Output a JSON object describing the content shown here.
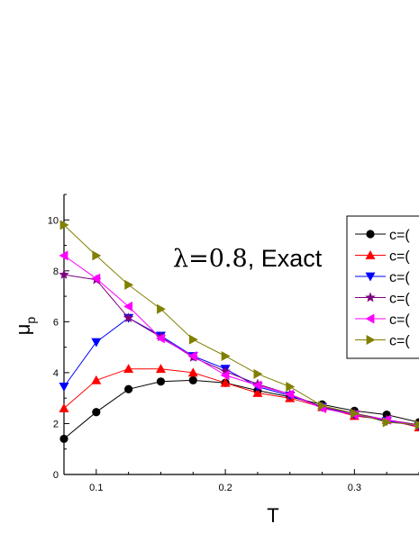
{
  "chart_data": {
    "type": "line",
    "annotation": {
      "symbol": "λ=0.8",
      "text": ", Exact"
    },
    "xlabel": "T",
    "ylabel": {
      "base": "μ",
      "sub": "p"
    },
    "xlim": [
      0.075,
      0.35
    ],
    "ylim": [
      0,
      11
    ],
    "xticks": [
      "0.1",
      "0.2",
      "0.3"
    ],
    "xtick_values": [
      0.1,
      0.2,
      0.3
    ],
    "yticks": [
      "0",
      "2",
      "4",
      "6",
      "8",
      "10"
    ],
    "ytick_values": [
      0,
      2,
      4,
      6,
      8,
      10
    ],
    "grid": false,
    "legend_position": "top-right",
    "x": [
      0.075,
      0.1,
      0.125,
      0.15,
      0.175,
      0.2,
      0.225,
      0.25,
      0.275,
      0.3,
      0.325,
      0.35
    ],
    "series": [
      {
        "name": "c=(",
        "color": "#000000",
        "marker": "circle",
        "values": [
          1.4,
          2.45,
          3.35,
          3.65,
          3.7,
          3.6,
          3.3,
          3.05,
          2.75,
          2.5,
          2.35,
          2.05
        ]
      },
      {
        "name": "c=(",
        "color": "#ff0000",
        "marker": "triangle-up",
        "values": [
          2.6,
          3.7,
          4.15,
          4.15,
          4.0,
          3.6,
          3.2,
          3.0,
          2.65,
          2.3,
          2.15,
          1.85
        ]
      },
      {
        "name": "c=(",
        "color": "#0000ff",
        "marker": "triangle-down",
        "values": [
          3.45,
          5.2,
          6.15,
          5.45,
          4.65,
          4.15,
          3.45,
          3.1,
          2.65,
          2.35,
          2.1,
          1.9
        ]
      },
      {
        "name": "c=(",
        "color": "#800080",
        "marker": "star",
        "values": [
          7.85,
          7.65,
          6.15,
          5.4,
          4.6,
          4.05,
          3.55,
          3.15,
          2.65,
          2.4,
          2.15,
          1.95
        ]
      },
      {
        "name": "c=(",
        "color": "#ff00ff",
        "marker": "triangle-left",
        "values": [
          8.6,
          7.7,
          6.6,
          5.35,
          4.65,
          3.9,
          3.5,
          3.15,
          2.6,
          2.35,
          2.15,
          1.9
        ]
      },
      {
        "name": "c=(",
        "color": "#808000",
        "marker": "triangle-right",
        "values": [
          9.8,
          8.6,
          7.45,
          6.5,
          5.3,
          4.65,
          3.95,
          3.45,
          2.7,
          2.4,
          2.05,
          1.95
        ]
      }
    ]
  }
}
